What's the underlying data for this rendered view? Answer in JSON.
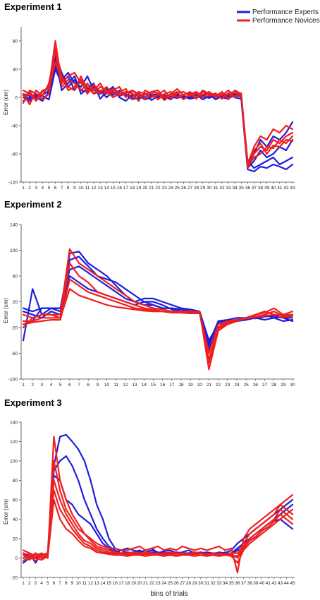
{
  "legend": {
    "experts": "Performance Experts",
    "novices": "Performance Novices"
  },
  "colors": {
    "experts": "#1f1fdc",
    "novices": "#ef1f1f",
    "axis": "#444444"
  },
  "xlabel_shared": "bins of trials",
  "chart_data": [
    {
      "type": "line",
      "title": "Experiment 1",
      "ylabel": "Error (cm)",
      "xlabel": "",
      "ylim": [
        -120,
        100
      ],
      "yticks": [
        -120,
        -80,
        -40,
        0,
        40,
        80
      ],
      "x": [
        1,
        2,
        3,
        4,
        5,
        6,
        7,
        8,
        9,
        10,
        11,
        12,
        13,
        14,
        15,
        16,
        17,
        18,
        19,
        20,
        21,
        22,
        23,
        24,
        25,
        26,
        27,
        28,
        29,
        30,
        31,
        32,
        33,
        34,
        35,
        36,
        37,
        38,
        39,
        40,
        41,
        42,
        43
      ],
      "series": [
        {
          "group": "experts",
          "values": [
            5,
            2,
            0,
            3,
            10,
            45,
            25,
            35,
            20,
            15,
            30,
            10,
            8,
            5,
            12,
            6,
            3,
            0,
            -2,
            4,
            2,
            0,
            3,
            1,
            -1,
            2,
            0,
            3,
            1,
            0,
            2,
            -1,
            3,
            5,
            2,
            -95,
            -80,
            -60,
            -70,
            -55,
            -60,
            -50,
            -35
          ]
        },
        {
          "group": "experts",
          "values": [
            0,
            -5,
            3,
            -2,
            5,
            60,
            35,
            15,
            25,
            10,
            8,
            15,
            5,
            12,
            3,
            10,
            4,
            2,
            6,
            0,
            5,
            3,
            -2,
            4,
            2,
            0,
            1,
            4,
            -3,
            2,
            0,
            3,
            1,
            2,
            3,
            -100,
            -90,
            -75,
            -85,
            -80,
            -70,
            -75,
            -60
          ]
        },
        {
          "group": "experts",
          "values": [
            -5,
            0,
            5,
            2,
            -3,
            40,
            20,
            30,
            10,
            25,
            15,
            5,
            10,
            0,
            8,
            2,
            5,
            -3,
            0,
            6,
            -4,
            2,
            0,
            5,
            3,
            -2,
            4,
            0,
            2,
            -1,
            3,
            0,
            -2,
            4,
            1,
            -90,
            -100,
            -95,
            -90,
            -85,
            -95,
            -90,
            -85
          ]
        },
        {
          "group": "experts",
          "values": [
            3,
            -2,
            0,
            -5,
            8,
            55,
            10,
            20,
            30,
            5,
            12,
            20,
            -2,
            8,
            15,
            0,
            -5,
            4,
            2,
            -3,
            0,
            6,
            2,
            -3,
            5,
            1,
            -2,
            0,
            3,
            4,
            -3,
            2,
            5,
            0,
            -2,
            -102,
            -105,
            -98,
            -100,
            -95,
            -98,
            -102,
            -95
          ]
        },
        {
          "group": "novices",
          "values": [
            10,
            5,
            -5,
            8,
            15,
            80,
            20,
            30,
            35,
            20,
            15,
            10,
            20,
            5,
            10,
            15,
            0,
            10,
            5,
            -2,
            8,
            10,
            0,
            5,
            12,
            3,
            8,
            0,
            10,
            5,
            2,
            8,
            -3,
            10,
            5,
            -95,
            -70,
            -55,
            -60,
            -45,
            -50,
            -40,
            -45
          ]
        },
        {
          "group": "novices",
          "values": [
            -8,
            10,
            5,
            -3,
            5,
            70,
            30,
            10,
            15,
            25,
            5,
            18,
            8,
            15,
            5,
            8,
            12,
            -3,
            8,
            5,
            0,
            4,
            10,
            -2,
            6,
            8,
            2,
            6,
            4,
            8,
            0,
            5,
            4,
            2,
            6,
            -100,
            -80,
            -70,
            -75,
            -60,
            -65,
            -55,
            -50
          ]
        },
        {
          "group": "novices",
          "values": [
            5,
            -10,
            10,
            2,
            20,
            65,
            15,
            25,
            20,
            10,
            20,
            5,
            15,
            10,
            0,
            5,
            8,
            6,
            -5,
            10,
            5,
            -3,
            5,
            8,
            0,
            4,
            6,
            -2,
            8,
            2,
            6,
            -2,
            6,
            8,
            3,
            -98,
            -85,
            -80,
            -70,
            -72,
            -60,
            -65,
            -55
          ]
        },
        {
          "group": "novices",
          "values": [
            0,
            8,
            -3,
            10,
            12,
            50,
            25,
            15,
            10,
            30,
            10,
            12,
            5,
            8,
            12,
            3,
            6,
            10,
            2,
            4,
            8,
            6,
            -4,
            3,
            8,
            -3,
            5,
            8,
            0,
            6,
            4,
            3,
            10,
            0,
            5,
            -92,
            -75,
            -65,
            -80,
            -68,
            -70,
            -60,
            -62
          ]
        }
      ]
    },
    {
      "type": "line",
      "title": "Experiment 2",
      "ylabel": "Error (cm)",
      "xlabel": "",
      "ylim": [
        -100,
        140
      ],
      "yticks": [
        -100,
        -60,
        -20,
        20,
        60,
        100,
        140
      ],
      "x": [
        1,
        2,
        3,
        4,
        5,
        6,
        7,
        8,
        9,
        10,
        11,
        12,
        13,
        14,
        15,
        16,
        17,
        18,
        19,
        20,
        21,
        22,
        23,
        24,
        25,
        26,
        27,
        28,
        29,
        30
      ],
      "series": [
        {
          "group": "experts",
          "values": [
            -40,
            40,
            0,
            10,
            5,
            95,
            98,
            80,
            70,
            60,
            45,
            30,
            20,
            25,
            25,
            20,
            15,
            10,
            8,
            5,
            -45,
            -10,
            -8,
            -5,
            -5,
            -3,
            -3,
            -2,
            -5,
            -10
          ]
        },
        {
          "group": "experts",
          "values": [
            -15,
            -10,
            10,
            10,
            10,
            85,
            90,
            75,
            60,
            55,
            50,
            40,
            30,
            20,
            15,
            10,
            10,
            8,
            5,
            5,
            -55,
            -20,
            -15,
            -10,
            -8,
            -5,
            0,
            -5,
            -10,
            -8
          ]
        },
        {
          "group": "experts",
          "values": [
            10,
            5,
            10,
            10,
            10,
            70,
            75,
            65,
            55,
            45,
            35,
            25,
            20,
            15,
            15,
            10,
            10,
            5,
            5,
            5,
            -40,
            -15,
            -12,
            -10,
            -8,
            -5,
            -8,
            -5,
            -3,
            0
          ]
        },
        {
          "group": "experts",
          "values": [
            5,
            0,
            -5,
            5,
            0,
            60,
            50,
            40,
            35,
            30,
            25,
            20,
            15,
            20,
            20,
            15,
            8,
            5,
            8,
            5,
            -50,
            -12,
            -10,
            -8,
            -5,
            -6,
            -3,
            0,
            -5,
            -5
          ]
        },
        {
          "group": "novices",
          "values": [
            -20,
            -5,
            0,
            0,
            0,
            102,
            80,
            70,
            60,
            50,
            40,
            30,
            20,
            15,
            10,
            8,
            5,
            5,
            5,
            5,
            -85,
            -25,
            -15,
            -10,
            -5,
            0,
            5,
            0,
            0,
            0
          ]
        },
        {
          "group": "novices",
          "values": [
            -10,
            -10,
            -5,
            -5,
            -5,
            80,
            60,
            50,
            35,
            30,
            25,
            20,
            15,
            10,
            8,
            5,
            3,
            3,
            2,
            2,
            -70,
            -20,
            -10,
            -8,
            -5,
            -3,
            0,
            5,
            -2,
            0
          ]
        },
        {
          "group": "novices",
          "values": [
            0,
            -5,
            0,
            0,
            -5,
            40,
            30,
            25,
            20,
            15,
            12,
            10,
            8,
            6,
            5,
            5,
            4,
            4,
            3,
            3,
            -60,
            -15,
            -10,
            -8,
            -5,
            0,
            3,
            10,
            0,
            5
          ]
        },
        {
          "group": "novices",
          "values": [
            -15,
            -12,
            -10,
            -8,
            -8,
            55,
            45,
            35,
            30,
            25,
            20,
            15,
            10,
            8,
            6,
            5,
            5,
            3,
            2,
            3,
            -75,
            -22,
            -12,
            -10,
            -6,
            -4,
            -2,
            0,
            -4,
            -2
          ]
        }
      ]
    },
    {
      "type": "line",
      "title": "Experiment 3",
      "ylabel": "Error (cm)",
      "xlabel": "bins of trials",
      "ylim": [
        -20,
        140
      ],
      "yticks": [
        -20,
        0,
        20,
        40,
        60,
        80,
        100,
        120,
        140
      ],
      "x": [
        1,
        2,
        3,
        4,
        5,
        6,
        7,
        8,
        9,
        10,
        11,
        12,
        13,
        14,
        15,
        16,
        17,
        18,
        19,
        20,
        21,
        22,
        23,
        24,
        25,
        26,
        27,
        28,
        29,
        30,
        31,
        32,
        33,
        34,
        35,
        36,
        37,
        38,
        39,
        40,
        41,
        42,
        43,
        44,
        45
      ],
      "series": [
        {
          "group": "experts",
          "values": [
            5,
            2,
            0,
            3,
            5,
            95,
            125,
            127,
            120,
            112,
            100,
            80,
            55,
            40,
            20,
            10,
            8,
            10,
            8,
            6,
            8,
            10,
            5,
            7,
            8,
            5,
            6,
            8,
            5,
            6,
            5,
            4,
            6,
            5,
            8,
            15,
            20,
            25,
            30,
            35,
            40,
            45,
            50,
            55,
            60
          ]
        },
        {
          "group": "experts",
          "values": [
            -5,
            0,
            3,
            0,
            2,
            90,
            100,
            105,
            95,
            80,
            60,
            45,
            30,
            20,
            12,
            8,
            5,
            6,
            5,
            5,
            6,
            8,
            6,
            5,
            5,
            6,
            5,
            5,
            4,
            5,
            6,
            5,
            5,
            4,
            5,
            10,
            15,
            20,
            25,
            30,
            35,
            40,
            45,
            50,
            55
          ]
        },
        {
          "group": "experts",
          "values": [
            0,
            5,
            -5,
            5,
            0,
            85,
            80,
            60,
            55,
            45,
            40,
            35,
            25,
            15,
            10,
            6,
            8,
            5,
            6,
            8,
            5,
            6,
            5,
            6,
            4,
            5,
            4,
            5,
            6,
            5,
            3,
            5,
            4,
            6,
            4,
            8,
            12,
            18,
            22,
            28,
            32,
            38,
            40,
            35,
            30
          ]
        },
        {
          "group": "novices",
          "values": [
            8,
            5,
            2,
            5,
            0,
            125,
            80,
            60,
            45,
            35,
            25,
            20,
            15,
            12,
            10,
            10,
            8,
            8,
            10,
            12,
            8,
            10,
            12,
            8,
            10,
            8,
            12,
            10,
            8,
            10,
            8,
            10,
            12,
            8,
            10,
            -15,
            20,
            30,
            35,
            40,
            45,
            50,
            55,
            60,
            65
          ]
        },
        {
          "group": "novices",
          "values": [
            3,
            0,
            5,
            2,
            5,
            100,
            70,
            50,
            40,
            30,
            25,
            18,
            12,
            10,
            8,
            6,
            5,
            5,
            6,
            5,
            6,
            5,
            4,
            5,
            6,
            5,
            5,
            4,
            6,
            5,
            4,
            5,
            3,
            4,
            5,
            5,
            15,
            25,
            30,
            35,
            40,
            45,
            55,
            50,
            45
          ]
        },
        {
          "group": "novices",
          "values": [
            -3,
            3,
            0,
            -2,
            2,
            80,
            60,
            45,
            35,
            25,
            18,
            15,
            10,
            8,
            6,
            5,
            4,
            4,
            5,
            4,
            5,
            4,
            5,
            4,
            3,
            5,
            4,
            3,
            4,
            5,
            4,
            3,
            5,
            4,
            3,
            2,
            12,
            20,
            25,
            30,
            35,
            40,
            50,
            45,
            40
          ]
        },
        {
          "group": "novices",
          "values": [
            5,
            -2,
            3,
            0,
            4,
            70,
            50,
            40,
            30,
            22,
            15,
            12,
            8,
            6,
            5,
            4,
            3,
            3,
            4,
            3,
            4,
            3,
            4,
            3,
            4,
            3,
            4,
            3,
            4,
            3,
            4,
            3,
            4,
            3,
            4,
            0,
            10,
            18,
            22,
            28,
            32,
            38,
            45,
            40,
            35
          ]
        },
        {
          "group": "novices",
          "values": [
            0,
            4,
            -3,
            3,
            1,
            60,
            40,
            30,
            25,
            18,
            12,
            10,
            6,
            5,
            4,
            3,
            3,
            2,
            3,
            3,
            2,
            3,
            3,
            2,
            3,
            2,
            3,
            3,
            2,
            3,
            2,
            3,
            2,
            3,
            2,
            -5,
            8,
            15,
            20,
            25,
            30,
            35,
            40,
            45,
            50
          ]
        }
      ]
    }
  ]
}
